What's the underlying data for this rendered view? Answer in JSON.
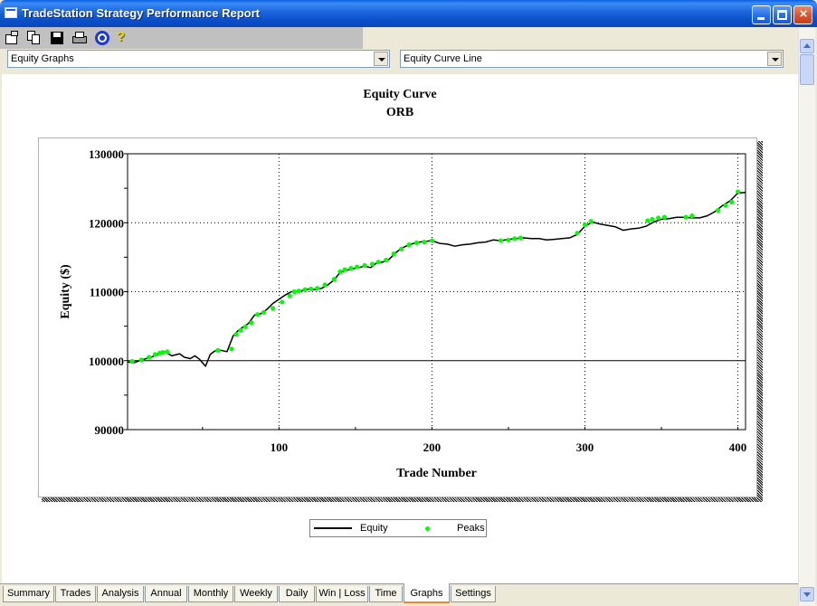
{
  "window": {
    "title": "TradeStation Strategy Performance Report"
  },
  "toolbar": {
    "icons": [
      "properties-icon",
      "copy-icon",
      "save-icon",
      "print-icon",
      "target-icon",
      "help-icon"
    ],
    "help_glyph": "?"
  },
  "selectors": {
    "report_type": "Equity Graphs",
    "graph_type": "Equity Curve Line"
  },
  "chart_data": {
    "type": "line",
    "title": "Equity Curve",
    "subtitle": "ORB",
    "xlabel": "Trade Number",
    "ylabel": "Equity ($)",
    "xlim": [
      1,
      405
    ],
    "ylim": [
      90000,
      130000
    ],
    "x_ticks": [
      100,
      200,
      300,
      400
    ],
    "y_ticks": [
      90000,
      100000,
      110000,
      120000,
      130000
    ],
    "grid": true,
    "legend_position": "bottom-center",
    "colors": {
      "equity": "#000000",
      "peaks": "#00ff00"
    },
    "series": [
      {
        "name": "Equity",
        "x": [
          1,
          5,
          10,
          15,
          20,
          25,
          30,
          35,
          38,
          42,
          45,
          48,
          52,
          55,
          58,
          62,
          66,
          70,
          73,
          76,
          80,
          84,
          88,
          92,
          96,
          100,
          104,
          108,
          112,
          116,
          120,
          124,
          128,
          132,
          136,
          140,
          144,
          148,
          152,
          156,
          160,
          164,
          168,
          172,
          176,
          180,
          184,
          188,
          192,
          196,
          200,
          205,
          210,
          215,
          220,
          225,
          230,
          235,
          240,
          245,
          250,
          255,
          260,
          265,
          270,
          275,
          280,
          285,
          290,
          295,
          300,
          305,
          310,
          315,
          320,
          325,
          330,
          335,
          340,
          345,
          350,
          355,
          360,
          365,
          370,
          375,
          380,
          385,
          390,
          395,
          400,
          405
        ],
        "y": [
          99800,
          99700,
          100100,
          100400,
          100800,
          101300,
          100700,
          101000,
          100500,
          100300,
          100700,
          100200,
          99200,
          100900,
          101400,
          101500,
          101300,
          103600,
          104300,
          104800,
          105400,
          106600,
          106800,
          107400,
          108300,
          108900,
          109500,
          110000,
          110000,
          110200,
          110400,
          110300,
          110500,
          111000,
          111700,
          112800,
          113100,
          113300,
          113500,
          113700,
          113500,
          114200,
          114300,
          114700,
          115600,
          116300,
          116700,
          117000,
          117200,
          117300,
          117400,
          117000,
          116900,
          116600,
          116800,
          116900,
          117100,
          117200,
          117500,
          117400,
          117600,
          117700,
          117800,
          117700,
          117700,
          117500,
          117600,
          117700,
          117800,
          118300,
          119500,
          120100,
          119800,
          119600,
          119400,
          118900,
          119100,
          119200,
          119500,
          120100,
          120500,
          120600,
          120800,
          120800,
          120700,
          120700,
          121000,
          121600,
          122500,
          123200,
          124300,
          124400
        ]
      },
      {
        "name": "Peaks",
        "x": [
          4,
          10,
          15,
          19,
          22,
          24,
          27,
          60,
          69,
          72,
          75,
          78,
          82,
          86,
          90,
          96,
          102,
          107,
          110,
          113,
          117,
          121,
          125,
          130,
          136,
          140,
          143,
          147,
          151,
          156,
          161,
          165,
          170,
          175,
          180,
          185,
          190,
          195,
          200,
          245,
          250,
          254,
          258,
          295,
          300,
          304,
          341,
          344,
          348,
          352,
          366,
          370,
          387,
          392,
          396,
          400
        ],
        "y": [
          99900,
          100100,
          100500,
          100900,
          101100,
          101200,
          101300,
          101500,
          101700,
          103800,
          104400,
          104900,
          105500,
          106700,
          107000,
          107600,
          108500,
          109400,
          110000,
          110100,
          110300,
          110400,
          110500,
          111000,
          111800,
          112900,
          113200,
          113400,
          113600,
          113800,
          114000,
          114300,
          114600,
          115500,
          116200,
          116800,
          117100,
          117200,
          117400,
          117400,
          117500,
          117700,
          117800,
          118500,
          119700,
          120200,
          120300,
          120500,
          120700,
          120800,
          120800,
          121000,
          121800,
          122500,
          123000,
          124500
        ]
      }
    ]
  },
  "tabs": [
    {
      "label": "Summary"
    },
    {
      "label": "Trades"
    },
    {
      "label": "Analysis"
    },
    {
      "label": "Annual"
    },
    {
      "label": "Monthly"
    },
    {
      "label": "Weekly"
    },
    {
      "label": "Daily"
    },
    {
      "label": "Win | Loss"
    },
    {
      "label": "Time"
    },
    {
      "label": "Graphs"
    },
    {
      "label": "Settings"
    }
  ],
  "active_tab": "Graphs"
}
